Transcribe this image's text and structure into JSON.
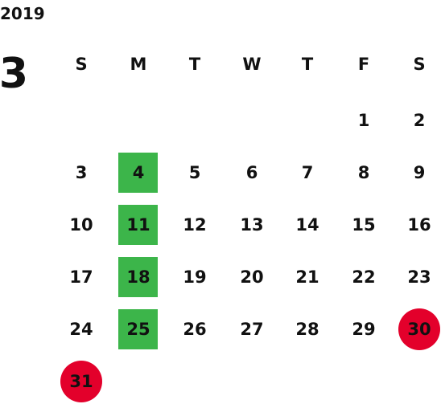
{
  "year": "2019",
  "month": "3",
  "weekdays": [
    "S",
    "M",
    "T",
    "W",
    "T",
    "F",
    "S"
  ],
  "weeks": [
    [
      1,
      2
    ],
    [
      3,
      4,
      5,
      6,
      7,
      8,
      9
    ],
    [
      10,
      11,
      12,
      13,
      14,
      15,
      16
    ],
    [
      17,
      18,
      19,
      20,
      21,
      22,
      23
    ],
    [
      24,
      25,
      26,
      27,
      28,
      29,
      30
    ],
    [
      31
    ]
  ]
}
